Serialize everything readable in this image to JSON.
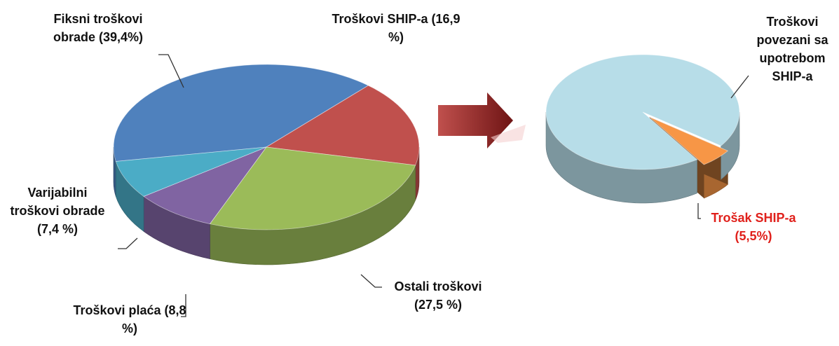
{
  "chart_data": [
    {
      "type": "pie",
      "categories": [
        "Fiksni troškovi obrade",
        "Troškovi SHIP-a",
        "Ostali troškovi",
        "Troškovi plaća",
        "Varijabilni troškovi obrade"
      ],
      "values": [
        39.4,
        16.9,
        27.5,
        8.8,
        7.4
      ],
      "value_labels": [
        "(39,4%)",
        "(16,9 %)",
        "(27,5 %)",
        "(8,8 %)",
        "(7,4 %)"
      ],
      "colors": [
        "#4f81bd",
        "#c0504d",
        "#9bbb59",
        "#8064a2",
        "#4bacc6"
      ]
    },
    {
      "type": "pie",
      "categories": [
        "Trošak SHIP-a",
        "Troškovi povezani sa upotrebom SHIP-a"
      ],
      "values": [
        5.5,
        94.5
      ],
      "value_labels": [
        "(5,5%)",
        null
      ],
      "colors": [
        "#f79646",
        "#b7dde8"
      ]
    }
  ]
}
